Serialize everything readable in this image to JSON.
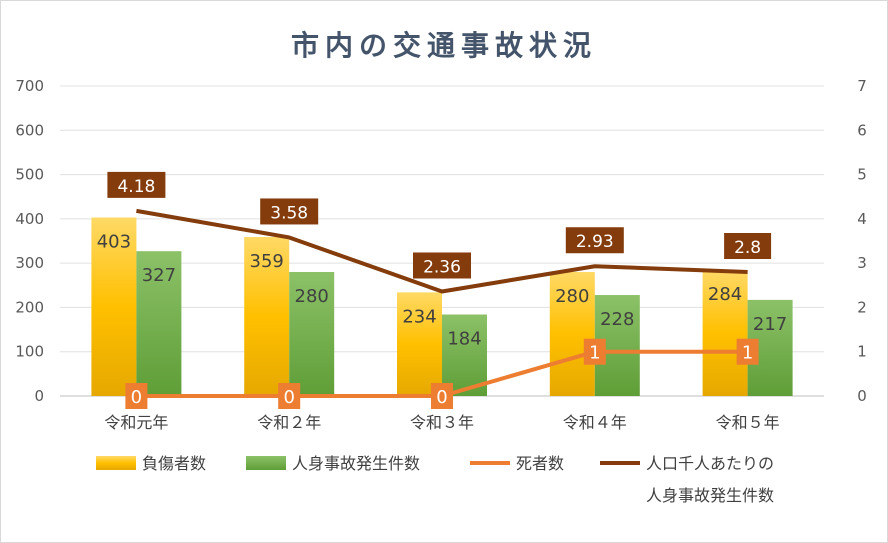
{
  "chart_data": {
    "type": "bar",
    "title": "市内の交通事故状況",
    "categories": [
      "令和元年",
      "令和２年",
      "令和３年",
      "令和４年",
      "令和５年"
    ],
    "ylim": [
      0,
      700
    ],
    "y_ticks": [
      0,
      100,
      200,
      300,
      400,
      500,
      600,
      700
    ],
    "y2lim": [
      0,
      7
    ],
    "y2_ticks": [
      0,
      1,
      2,
      3,
      4,
      5,
      6,
      7
    ],
    "grid": true,
    "legend_position": "bottom",
    "series": [
      {
        "name": "負傷者数",
        "type": "bar",
        "axis": "left",
        "color": "#ffc000",
        "values": [
          403,
          359,
          234,
          280,
          284
        ]
      },
      {
        "name": "人身事故発生件数",
        "type": "bar",
        "axis": "left",
        "color": "#70ad47",
        "values": [
          327,
          280,
          184,
          228,
          217
        ]
      },
      {
        "name": "死者数",
        "type": "line",
        "axis": "right",
        "color": "#ed7d31",
        "values": [
          0,
          0,
          0,
          1,
          1
        ]
      },
      {
        "name": "人口千人あたりの人身事故発生件数",
        "name_lines": [
          "人口千人あたりの",
          "人身事故発生件数"
        ],
        "type": "line",
        "axis": "right",
        "color": "#843c0c",
        "values": [
          4.18,
          3.58,
          2.36,
          2.93,
          2.8
        ]
      }
    ]
  }
}
